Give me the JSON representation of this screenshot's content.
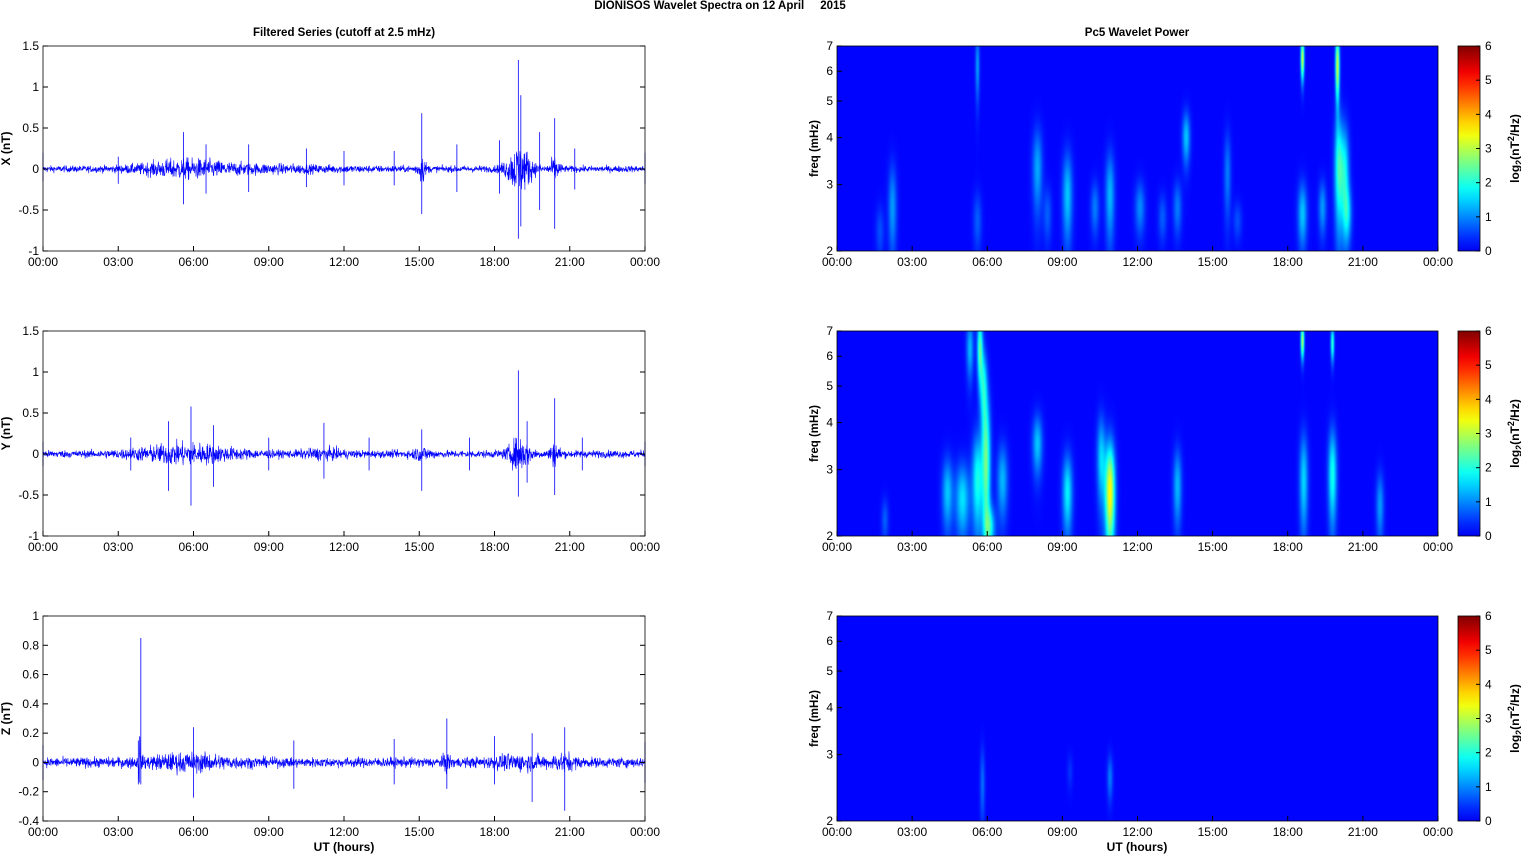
{
  "figure": {
    "title": "DIONISOS Wavelet Spectra on 12 April     2015",
    "left_column_title": "Filtered Series (cutoff at 2.5 mHz)",
    "right_column_title": "Pc5 Wavelet Power",
    "xlabel": "UT (hours)"
  },
  "chart_data": [
    {
      "type": "line",
      "panel": "X",
      "ylabel": "X (nT)",
      "ylim": [
        -1,
        1.5
      ],
      "yticks": [
        -1,
        -0.5,
        0,
        0.5,
        1,
        1.5
      ],
      "xlim": [
        0,
        24
      ],
      "xtick_labels": [
        "00:00",
        "03:00",
        "06:00",
        "09:00",
        "12:00",
        "15:00",
        "18:00",
        "21:00",
        "00:00"
      ],
      "color": "#0000ff",
      "noise_amplitude": 0.07,
      "activity": [
        [
          5.6,
          0.3,
          1.2
        ],
        [
          8.2,
          0.12,
          2.5
        ],
        [
          15.1,
          0.55,
          0.12
        ],
        [
          19.0,
          1.05,
          0.35
        ],
        [
          20.4,
          0.45,
          0.15
        ]
      ],
      "series": [
        {
          "x": [
            0,
            3,
            5.6,
            6.5,
            8.2,
            10.5,
            12,
            14,
            15.1,
            16.5,
            18.2,
            18.95,
            19.05,
            19.8,
            20.4,
            21.2,
            24
          ],
          "y": [
            0.2,
            0.15,
            0.45,
            0.3,
            0.3,
            0.25,
            0.22,
            0.22,
            0.68,
            0.3,
            0.35,
            1.33,
            0.9,
            0.45,
            0.62,
            0.25,
            0.2
          ]
        },
        {
          "x": [
            0,
            3,
            5.6,
            6.5,
            8.2,
            10.5,
            12,
            14,
            15.1,
            16.5,
            18.2,
            18.95,
            19.05,
            19.8,
            20.4,
            21.2,
            24
          ],
          "y": [
            -0.15,
            -0.18,
            -0.43,
            -0.3,
            -0.28,
            -0.22,
            -0.2,
            -0.2,
            -0.55,
            -0.28,
            -0.3,
            -0.85,
            -0.7,
            -0.5,
            -0.73,
            -0.25,
            -0.18
          ]
        }
      ]
    },
    {
      "type": "line",
      "panel": "Y",
      "ylabel": "Y (nT)",
      "ylim": [
        -1,
        1.5
      ],
      "yticks": [
        -1,
        -0.5,
        0,
        0.5,
        1,
        1.5
      ],
      "xlim": [
        0,
        24
      ],
      "xtick_labels": [
        "00:00",
        "03:00",
        "06:00",
        "09:00",
        "12:00",
        "15:00",
        "18:00",
        "21:00",
        "00:00"
      ],
      "color": "#0000ff",
      "noise_amplitude": 0.08,
      "activity": [
        [
          5.7,
          0.4,
          1.4
        ],
        [
          11.2,
          0.15,
          0.6
        ],
        [
          15.1,
          0.2,
          0.3
        ],
        [
          19.0,
          0.7,
          0.3
        ],
        [
          20.4,
          0.45,
          0.15
        ]
      ],
      "series": [
        {
          "x": [
            0,
            3.5,
            5.0,
            5.9,
            6.8,
            9,
            11.2,
            13,
            15.1,
            17,
            18.95,
            19.3,
            20.4,
            21.5,
            24
          ],
          "y": [
            0.15,
            0.2,
            0.4,
            0.58,
            0.35,
            0.2,
            0.38,
            0.2,
            0.3,
            0.2,
            1.02,
            0.4,
            0.68,
            0.2,
            0.15
          ]
        },
        {
          "x": [
            0,
            3.5,
            5.0,
            5.9,
            6.8,
            9,
            11.2,
            13,
            15.1,
            17,
            18.95,
            19.3,
            20.4,
            21.5,
            24
          ],
          "y": [
            -0.15,
            -0.2,
            -0.45,
            -0.63,
            -0.4,
            -0.2,
            -0.3,
            -0.2,
            -0.45,
            -0.2,
            -0.52,
            -0.35,
            -0.5,
            -0.2,
            -0.15
          ]
        }
      ]
    },
    {
      "type": "line",
      "panel": "Z",
      "ylabel": "Z (nT)",
      "ylim": [
        -0.4,
        1
      ],
      "yticks": [
        -0.4,
        -0.2,
        0,
        0.2,
        0.4,
        0.6,
        0.8,
        1
      ],
      "xlim": [
        0,
        24
      ],
      "xtick_labels": [
        "00:00",
        "03:00",
        "06:00",
        "09:00",
        "12:00",
        "15:00",
        "18:00",
        "21:00",
        "00:00"
      ],
      "color": "#0000ff",
      "noise_amplitude": 0.06,
      "activity": [
        [
          3.85,
          0.85,
          0.02
        ],
        [
          5.8,
          0.15,
          1.2
        ],
        [
          16.1,
          0.2,
          0.1
        ],
        [
          19.0,
          0.12,
          0.8
        ],
        [
          20.8,
          0.15,
          0.3
        ]
      ],
      "series": [
        {
          "x": [
            0,
            3.8,
            3.9,
            6,
            10,
            14,
            16.1,
            18,
            19.5,
            20.8,
            24
          ],
          "y": [
            0.12,
            0.15,
            0.85,
            0.24,
            0.15,
            0.16,
            0.3,
            0.18,
            0.2,
            0.24,
            0.14
          ]
        },
        {
          "x": [
            0,
            3.8,
            3.9,
            6,
            10,
            14,
            16.1,
            18,
            19.5,
            20.8,
            24
          ],
          "y": [
            -0.12,
            -0.15,
            -0.15,
            -0.24,
            -0.18,
            -0.15,
            -0.18,
            -0.15,
            -0.27,
            -0.33,
            -0.14
          ]
        }
      ]
    },
    {
      "type": "heatmap",
      "panel": "X",
      "ylabel": "freq (mHz)",
      "yscale": "log",
      "ylim": [
        2,
        7
      ],
      "yticks": [
        2,
        3,
        4,
        5,
        6,
        7
      ],
      "xlim": [
        0,
        24
      ],
      "xtick_labels": [
        "00:00",
        "03:00",
        "06:00",
        "09:00",
        "12:00",
        "15:00",
        "18:00",
        "21:00",
        "00:00"
      ],
      "colorbar_label": "log2(nT2/Hz)",
      "clim": [
        0,
        6
      ],
      "colorbar_ticks": [
        0,
        1,
        2,
        3,
        4,
        5,
        6
      ],
      "colormap": "jet",
      "background_value": 0.12,
      "blobs": [
        {
          "t": 1.7,
          "f": 2.25,
          "peak": 0.5,
          "dt": 0.12,
          "df": 0.25
        },
        {
          "t": 2.2,
          "f": 2.6,
          "peak": 1.0,
          "dt": 0.12,
          "df": 0.5
        },
        {
          "t": 5.6,
          "f": 6.2,
          "peak": 1.0,
          "dt": 0.06,
          "df": 0.9
        },
        {
          "t": 5.6,
          "f": 2.4,
          "peak": 0.6,
          "dt": 0.12,
          "df": 0.3
        },
        {
          "t": 8.0,
          "f": 3.3,
          "peak": 1.1,
          "dt": 0.14,
          "df": 0.6
        },
        {
          "t": 8.4,
          "f": 2.5,
          "peak": 0.6,
          "dt": 0.12,
          "df": 0.3
        },
        {
          "t": 9.2,
          "f": 2.8,
          "peak": 1.3,
          "dt": 0.14,
          "df": 0.55
        },
        {
          "t": 10.3,
          "f": 2.6,
          "peak": 0.8,
          "dt": 0.12,
          "df": 0.3
        },
        {
          "t": 10.9,
          "f": 2.8,
          "peak": 1.2,
          "dt": 0.13,
          "df": 0.55
        },
        {
          "t": 12.1,
          "f": 2.6,
          "peak": 0.9,
          "dt": 0.14,
          "df": 0.3
        },
        {
          "t": 13.0,
          "f": 2.45,
          "peak": 0.6,
          "dt": 0.12,
          "df": 0.25
        },
        {
          "t": 13.6,
          "f": 2.6,
          "peak": 0.8,
          "dt": 0.12,
          "df": 0.3
        },
        {
          "t": 13.95,
          "f": 4.0,
          "peak": 1.3,
          "dt": 0.11,
          "df": 0.45
        },
        {
          "t": 15.6,
          "f": 3.2,
          "peak": 0.8,
          "dt": 0.1,
          "df": 0.6
        },
        {
          "t": 16.0,
          "f": 2.4,
          "peak": 0.5,
          "dt": 0.12,
          "df": 0.2
        },
        {
          "t": 18.6,
          "f": 6.5,
          "peak": 3.0,
          "dt": 0.05,
          "df": 0.6
        },
        {
          "t": 18.6,
          "f": 2.5,
          "peak": 1.3,
          "dt": 0.13,
          "df": 0.35
        },
        {
          "t": 19.4,
          "f": 2.6,
          "peak": 1.0,
          "dt": 0.11,
          "df": 0.3
        },
        {
          "t": 20.0,
          "f": 6.2,
          "peak": 3.0,
          "dt": 0.06,
          "df": 0.9
        },
        {
          "t": 20.05,
          "f": 3.3,
          "peak": 2.0,
          "dt": 0.12,
          "df": 0.8
        },
        {
          "t": 20.3,
          "f": 3.2,
          "peak": 1.6,
          "dt": 0.12,
          "df": 0.7
        },
        {
          "t": 20.4,
          "f": 2.5,
          "peak": 1.2,
          "dt": 0.12,
          "df": 0.3
        }
      ]
    },
    {
      "type": "heatmap",
      "panel": "Y",
      "ylabel": "freq (mHz)",
      "yscale": "log",
      "ylim": [
        2,
        7
      ],
      "yticks": [
        2,
        3,
        4,
        5,
        6,
        7
      ],
      "xlim": [
        0,
        24
      ],
      "xtick_labels": [
        "00:00",
        "03:00",
        "06:00",
        "09:00",
        "12:00",
        "15:00",
        "18:00",
        "21:00",
        "00:00"
      ],
      "colorbar_label": "log2(nT2/Hz)",
      "clim": [
        0,
        6
      ],
      "colorbar_ticks": [
        0,
        1,
        2,
        3,
        4,
        5,
        6
      ],
      "colormap": "jet",
      "background_value": 0.12,
      "blobs": [
        {
          "t": 1.9,
          "f": 2.2,
          "peak": 0.6,
          "dt": 0.1,
          "df": 0.2
        },
        {
          "t": 4.4,
          "f": 2.6,
          "peak": 1.3,
          "dt": 0.15,
          "df": 0.4
        },
        {
          "t": 5.0,
          "f": 2.5,
          "peak": 1.5,
          "dt": 0.2,
          "df": 0.4
        },
        {
          "t": 5.3,
          "f": 6.3,
          "peak": 1.2,
          "dt": 0.1,
          "df": 0.8
        },
        {
          "t": 5.6,
          "f": 2.8,
          "peak": 1.8,
          "dt": 0.15,
          "df": 0.6
        },
        {
          "t": 5.7,
          "f": 6.3,
          "peak": 2.2,
          "dt": 0.08,
          "df": 0.9
        },
        {
          "t": 5.85,
          "f": 5.0,
          "peak": 1.6,
          "dt": 0.1,
          "df": 0.8
        },
        {
          "t": 5.95,
          "f": 3.1,
          "peak": 2.3,
          "dt": 0.12,
          "df": 1.0
        },
        {
          "t": 6.1,
          "f": 2.1,
          "peak": 1.5,
          "dt": 0.15,
          "df": 0.2
        },
        {
          "t": 6.6,
          "f": 2.8,
          "peak": 1.2,
          "dt": 0.15,
          "df": 0.45
        },
        {
          "t": 8.0,
          "f": 3.5,
          "peak": 1.3,
          "dt": 0.14,
          "df": 0.45
        },
        {
          "t": 9.2,
          "f": 2.6,
          "peak": 1.6,
          "dt": 0.14,
          "df": 0.45
        },
        {
          "t": 10.55,
          "f": 3.2,
          "peak": 1.4,
          "dt": 0.12,
          "df": 0.6
        },
        {
          "t": 10.9,
          "f": 2.6,
          "peak": 3.4,
          "dt": 0.14,
          "df": 0.6
        },
        {
          "t": 13.6,
          "f": 2.7,
          "peak": 1.2,
          "dt": 0.12,
          "df": 0.45
        },
        {
          "t": 18.6,
          "f": 6.6,
          "peak": 2.8,
          "dt": 0.05,
          "df": 0.5
        },
        {
          "t": 18.65,
          "f": 2.8,
          "peak": 1.4,
          "dt": 0.12,
          "df": 0.6
        },
        {
          "t": 19.8,
          "f": 6.5,
          "peak": 2.0,
          "dt": 0.05,
          "df": 0.5
        },
        {
          "t": 19.8,
          "f": 2.9,
          "peak": 1.8,
          "dt": 0.12,
          "df": 0.6
        },
        {
          "t": 21.7,
          "f": 2.4,
          "peak": 1.0,
          "dt": 0.11,
          "df": 0.35
        }
      ]
    },
    {
      "type": "heatmap",
      "panel": "Z",
      "ylabel": "freq (mHz)",
      "yscale": "log",
      "ylim": [
        2,
        7
      ],
      "yticks": [
        2,
        3,
        4,
        5,
        6,
        7
      ],
      "xlim": [
        0,
        24
      ],
      "xtick_labels": [
        "00:00",
        "03:00",
        "06:00",
        "09:00",
        "12:00",
        "15:00",
        "18:00",
        "21:00",
        "00:00"
      ],
      "colorbar_label": "log2(nT2/Hz)",
      "clim": [
        0,
        6
      ],
      "colorbar_ticks": [
        0,
        1,
        2,
        3,
        4,
        5,
        6
      ],
      "colormap": "jet",
      "background_value": 0.12,
      "blobs": [
        {
          "t": 5.8,
          "f": 2.5,
          "peak": 0.7,
          "dt": 0.07,
          "df": 0.4
        },
        {
          "t": 9.3,
          "f": 2.7,
          "peak": 0.3,
          "dt": 0.08,
          "df": 0.2
        },
        {
          "t": 10.9,
          "f": 2.6,
          "peak": 0.8,
          "dt": 0.08,
          "df": 0.25
        }
      ]
    }
  ]
}
